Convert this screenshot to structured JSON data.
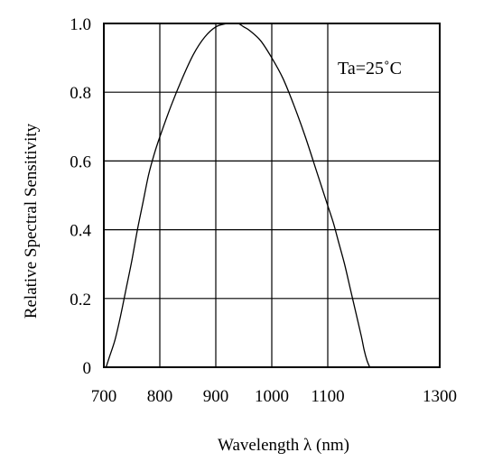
{
  "chart_data": {
    "type": "line",
    "title": "",
    "xlabel": "Wavelength λ (nm)",
    "ylabel": "Relative Spectral Sensitivity",
    "xlim": [
      700,
      1300
    ],
    "ylim": [
      0,
      1.0
    ],
    "xticks": [
      700,
      800,
      900,
      1000,
      1100,
      1300
    ],
    "yticks": [
      0,
      0.2,
      0.4,
      0.6,
      0.8,
      1.0
    ],
    "xtick_labels": [
      "700",
      "800",
      "900",
      "1000",
      "1100",
      "1300"
    ],
    "ytick_labels": [
      "0",
      "0.2",
      "0.4",
      "0.6",
      "0.8",
      "1.0"
    ],
    "grid": true,
    "annotation": "Ta=25˚C",
    "series": [
      {
        "x": [
          704,
          710,
          720,
          730,
          740,
          750,
          760,
          770,
          780,
          790,
          800,
          820,
          840,
          860,
          880,
          900,
          920,
          930,
          940,
          950,
          960,
          980,
          1000,
          1020,
          1040,
          1060,
          1080,
          1090,
          1100,
          1110,
          1120,
          1130,
          1140,
          1150,
          1160,
          1165,
          1170,
          1175
        ],
        "y": [
          0.0,
          0.03,
          0.08,
          0.15,
          0.23,
          0.31,
          0.4,
          0.48,
          0.56,
          0.62,
          0.67,
          0.76,
          0.84,
          0.91,
          0.96,
          0.99,
          1.0,
          1.0,
          1.0,
          0.99,
          0.98,
          0.95,
          0.9,
          0.84,
          0.76,
          0.67,
          0.57,
          0.52,
          0.47,
          0.42,
          0.36,
          0.3,
          0.23,
          0.16,
          0.09,
          0.05,
          0.02,
          0.0
        ]
      }
    ]
  }
}
